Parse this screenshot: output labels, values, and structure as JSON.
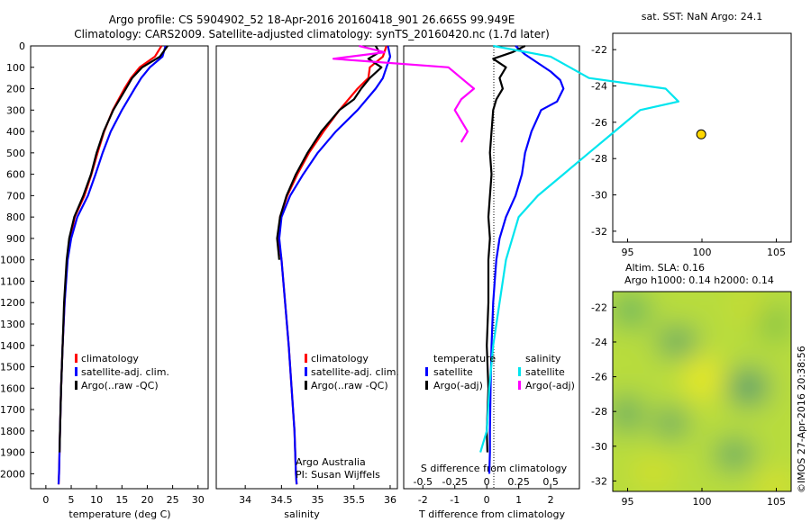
{
  "header": {
    "line1": "Argo profile: CS 5904902_52 18-Apr-2016 20160418_901 26.665S 99.949E",
    "line2": "Climatology: CARS2009. Satellite-adjusted climatology: synTS_20160420.nc (1.7d later)"
  },
  "colors": {
    "climatology": "#ff0000",
    "satellite": "#0000ff",
    "argo": "#000000",
    "sat_diff_s": "#00e5ee",
    "argo_diff_s": "#ff00ff",
    "map_point": "#ffd700"
  },
  "chart_data": [
    {
      "id": "temperature",
      "type": "line",
      "xlabel": "temperature (deg C)",
      "xlim": [
        -3,
        32
      ],
      "ylim": [
        2070,
        0
      ],
      "xticks": [
        "0",
        "5",
        "10",
        "15",
        "20",
        "25",
        "30"
      ],
      "yticks": [
        "0",
        "100",
        "200",
        "300",
        "400",
        "500",
        "600",
        "700",
        "800",
        "900",
        "1000",
        "1100",
        "1200",
        "1300",
        "1400",
        "1500",
        "1600",
        "1700",
        "1800",
        "1900",
        "2000"
      ],
      "legend": [
        "climatology",
        "satellite-adj. clim.",
        "Argo(..raw -QC)"
      ],
      "series": [
        {
          "name": "climatology",
          "color": "#ff0000",
          "depth": [
            0,
            50,
            100,
            150,
            200,
            300,
            400,
            500,
            600,
            700,
            800,
            900,
            1000,
            1200,
            1400,
            1600,
            1800,
            2000,
            2050
          ],
          "values": [
            22.8,
            21.5,
            18.5,
            16.8,
            15.5,
            13.2,
            11.5,
            10.2,
            9.0,
            7.6,
            5.7,
            4.8,
            4.2,
            3.7,
            3.3,
            3.0,
            2.8,
            2.6,
            2.5
          ]
        },
        {
          "name": "satellite-adj. clim.",
          "color": "#0000ff",
          "depth": [
            0,
            50,
            100,
            150,
            200,
            300,
            400,
            500,
            600,
            700,
            800,
            900,
            1000,
            1200,
            1400,
            1600,
            1800,
            2000,
            2050
          ],
          "values": [
            23.6,
            23.0,
            20.5,
            18.8,
            17.5,
            15.0,
            12.8,
            11.2,
            9.8,
            8.3,
            6.2,
            5.0,
            4.3,
            3.7,
            3.3,
            3.0,
            2.8,
            2.6,
            2.5
          ]
        },
        {
          "name": "Argo(..raw -QC)",
          "color": "#000000",
          "depth": [
            0,
            50,
            100,
            150,
            200,
            300,
            400,
            500,
            600,
            700,
            800,
            900,
            1000,
            1200,
            1400,
            1600,
            1800,
            1900
          ],
          "values": [
            24.0,
            22.5,
            19.0,
            17.0,
            15.8,
            13.3,
            11.4,
            10.0,
            8.9,
            7.4,
            5.6,
            4.6,
            4.1,
            3.6,
            3.3,
            3.0,
            2.8,
            2.7
          ]
        }
      ]
    },
    {
      "id": "salinity",
      "type": "line",
      "xlabel": "salinity",
      "xlim": [
        33.6,
        36.1
      ],
      "ylim": [
        2070,
        0
      ],
      "xticks": [
        "34",
        "34.5",
        "35",
        "35.5",
        "36"
      ],
      "legend": [
        "climatology",
        "satellite-adj. clim.",
        "Argo(..raw -QC)"
      ],
      "annotations": [
        "Argo Australia",
        "PI: Susan Wijffels"
      ],
      "series": [
        {
          "name": "climatology",
          "color": "#ff0000",
          "depth": [
            0,
            50,
            100,
            150,
            200,
            300,
            400,
            500,
            600,
            700,
            800,
            900,
            1000,
            1200,
            1400,
            1600,
            1800,
            2000,
            2050
          ],
          "values": [
            35.95,
            35.9,
            35.72,
            35.7,
            35.55,
            35.3,
            35.08,
            34.88,
            34.72,
            34.58,
            34.48,
            34.46,
            34.5,
            34.55,
            34.6,
            34.64,
            34.68,
            34.7,
            34.71
          ]
        },
        {
          "name": "satellite-adj. clim.",
          "color": "#0000ff",
          "depth": [
            0,
            50,
            100,
            150,
            200,
            300,
            400,
            500,
            600,
            700,
            800,
            900,
            1000,
            1200,
            1400,
            1600,
            1800,
            2000,
            2050
          ],
          "values": [
            35.97,
            36.0,
            35.95,
            35.9,
            35.8,
            35.55,
            35.25,
            35.0,
            34.8,
            34.62,
            34.5,
            34.47,
            34.5,
            34.55,
            34.6,
            34.64,
            34.68,
            34.7,
            34.71
          ]
        },
        {
          "name": "Argo(..raw -QC)",
          "color": "#000000",
          "depth": [
            0,
            30,
            60,
            100,
            150,
            200,
            250,
            300,
            400,
            500,
            600,
            700,
            800,
            900,
            1000
          ],
          "values": [
            35.8,
            35.85,
            35.7,
            35.88,
            35.72,
            35.6,
            35.5,
            35.3,
            35.05,
            34.86,
            34.7,
            34.57,
            34.48,
            34.44,
            34.47
          ]
        }
      ]
    },
    {
      "id": "difference",
      "type": "line",
      "xlabel": "T difference from climatology",
      "x2label": "S difference from climatology",
      "xlim": [
        -2.6,
        2.9
      ],
      "ylim": [
        2070,
        0
      ],
      "xticks": [
        "-2",
        "-1",
        "0",
        "1",
        "2"
      ],
      "x2ticks": [
        "-0.5",
        "-0.25",
        "0",
        "0.25",
        "0.5"
      ],
      "legend_headers": [
        "temperature",
        "salinity"
      ],
      "legend": [
        "satellite",
        "Argo(-adj)",
        "satellite",
        "Argo(-adj)"
      ],
      "series": [
        {
          "name": "satellite",
          "quantity": "temperature",
          "color": "#0000ff",
          "depth": [
            0,
            40,
            80,
            120,
            160,
            200,
            260,
            300,
            400,
            500,
            600,
            700,
            800,
            900,
            1000,
            1100,
            1200,
            1400,
            1600,
            1800,
            1900,
            2000
          ],
          "values": [
            0.9,
            1.2,
            1.6,
            2.0,
            2.3,
            2.4,
            2.2,
            1.7,
            1.4,
            1.2,
            1.1,
            0.9,
            0.6,
            0.4,
            0.3,
            0.25,
            0.2,
            0.15,
            0.12,
            0.1,
            0.1,
            0.08
          ]
        },
        {
          "name": "Argo(-adj)",
          "quantity": "temperature",
          "color": "#000000",
          "depth": [
            0,
            30,
            60,
            100,
            150,
            200,
            250,
            300,
            400,
            500,
            600,
            700,
            800,
            900,
            1000,
            1200,
            1400,
            1600,
            1800,
            1900
          ],
          "values": [
            1.2,
            0.8,
            0.2,
            0.6,
            0.4,
            0.5,
            0.3,
            0.2,
            0.15,
            0.1,
            0.15,
            0.1,
            0.05,
            0.1,
            0.05,
            0.05,
            0.0,
            0.05,
            0.0,
            0.02
          ]
        },
        {
          "name": "satellite",
          "quantity": "salinity",
          "color": "#00e5ee",
          "depth": [
            0,
            50,
            100,
            150,
            200,
            260,
            300,
            400,
            500,
            600,
            700,
            800,
            1000,
            1200,
            1400,
            1600,
            1800,
            1900
          ],
          "values": [
            0.05,
            0.5,
            0.65,
            0.8,
            1.4,
            1.5,
            1.2,
            1.0,
            0.8,
            0.6,
            0.4,
            0.25,
            0.15,
            0.1,
            0.05,
            0.02,
            0.0,
            -0.05
          ]
        },
        {
          "name": "Argo(-adj)",
          "quantity": "salinity",
          "color": "#ff00ff",
          "depth": [
            0,
            30,
            60,
            100,
            150,
            200,
            250,
            300,
            350,
            400,
            450
          ],
          "values": [
            -1.0,
            -0.8,
            -1.2,
            -0.3,
            -0.2,
            -0.1,
            -0.2,
            -0.25,
            -0.2,
            -0.15,
            -0.2
          ]
        }
      ]
    },
    {
      "id": "sst_map",
      "type": "scatter",
      "title": "sat. SST: NaN Argo: 24.1",
      "xlim": [
        94,
        106
      ],
      "ylim": [
        -32.6,
        -21.1
      ],
      "xticks": [
        "95",
        "100",
        "105"
      ],
      "yticks": [
        "-22",
        "-24",
        "-26",
        "-28",
        "-30",
        "-32"
      ],
      "points": [
        {
          "x": 99.949,
          "y": -26.665,
          "label": "Argo"
        }
      ]
    },
    {
      "id": "sla_map",
      "type": "heatmap",
      "title_line1": "Altim. SLA: 0.16",
      "title_line2": "Argo h1000: 0.14 h2000: 0.14",
      "xlim": [
        94,
        106
      ],
      "ylim": [
        -32.6,
        -21.1
      ],
      "xticks": [
        "95",
        "100",
        "105"
      ],
      "yticks": [
        "-22",
        "-24",
        "-26",
        "-28",
        "-30",
        "-32"
      ]
    }
  ],
  "credit": "©IMOS 27-Apr-2016 20:38:56"
}
